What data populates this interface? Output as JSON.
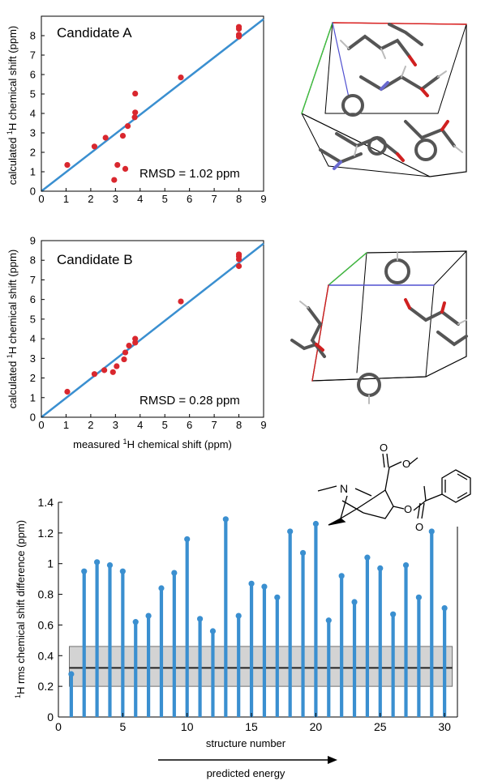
{
  "colors": {
    "fit_line": "#3a8fd0",
    "points": "#d9272e",
    "stems": "#3a8fd0",
    "band_fill": "#d3d3d3",
    "band_edge": "#707070",
    "mean_line": "#222222"
  },
  "chart_data": [
    {
      "type": "scatter",
      "title": "Candidate A",
      "annotation": "RMSD = 1.02 ppm",
      "xlabel": "",
      "ylabel_prefix": "calculated ",
      "ylabel_sup": "1",
      "ylabel_suffix": "H chemical shift (ppm)",
      "xlim": [
        0,
        9
      ],
      "ylim": [
        0,
        9
      ],
      "xticks": [
        0,
        1,
        2,
        3,
        4,
        5,
        6,
        7,
        8,
        9
      ],
      "yticks": [
        0,
        1,
        2,
        3,
        4,
        5,
        6,
        7,
        8
      ],
      "fit_line": [
        [
          0,
          0
        ],
        [
          9,
          8.85
        ]
      ],
      "points": [
        {
          "x": 1.05,
          "y": 1.35
        },
        {
          "x": 2.15,
          "y": 2.3
        },
        {
          "x": 2.6,
          "y": 2.75
        },
        {
          "x": 2.95,
          "y": 0.58
        },
        {
          "x": 3.08,
          "y": 1.35
        },
        {
          "x": 3.3,
          "y": 2.85
        },
        {
          "x": 3.4,
          "y": 1.15
        },
        {
          "x": 3.5,
          "y": 3.35
        },
        {
          "x": 3.78,
          "y": 3.8
        },
        {
          "x": 3.8,
          "y": 4.05
        },
        {
          "x": 3.8,
          "y": 5.02
        },
        {
          "x": 5.65,
          "y": 5.85
        },
        {
          "x": 8.0,
          "y": 7.95
        },
        {
          "x": 8.0,
          "y": 8.05
        },
        {
          "x": 8.0,
          "y": 8.35
        },
        {
          "x": 8.0,
          "y": 8.45
        }
      ]
    },
    {
      "type": "scatter",
      "title": "Candidate B",
      "annotation": "RMSD = 0.28 ppm",
      "xlabel_prefix": "measured ",
      "xlabel_sup": "1",
      "xlabel_suffix": "H chemical shift (ppm)",
      "ylabel_prefix": "calculated ",
      "ylabel_sup": "1",
      "ylabel_suffix": "H chemical shift (ppm)",
      "xlim": [
        0,
        9
      ],
      "ylim": [
        0,
        9
      ],
      "xticks": [
        0,
        1,
        2,
        3,
        4,
        5,
        6,
        7,
        8,
        9
      ],
      "yticks": [
        0,
        1,
        2,
        3,
        4,
        5,
        6,
        7,
        8,
        9
      ],
      "fit_line": [
        [
          0,
          0
        ],
        [
          9,
          8.85
        ]
      ],
      "points": [
        {
          "x": 1.05,
          "y": 1.3
        },
        {
          "x": 2.15,
          "y": 2.2
        },
        {
          "x": 2.55,
          "y": 2.4
        },
        {
          "x": 2.9,
          "y": 2.3
        },
        {
          "x": 3.05,
          "y": 2.6
        },
        {
          "x": 3.35,
          "y": 2.95
        },
        {
          "x": 3.4,
          "y": 3.3
        },
        {
          "x": 3.55,
          "y": 3.65
        },
        {
          "x": 3.8,
          "y": 3.8
        },
        {
          "x": 3.8,
          "y": 4.0
        },
        {
          "x": 5.65,
          "y": 5.9
        },
        {
          "x": 8.0,
          "y": 7.7
        },
        {
          "x": 8.0,
          "y": 8.05
        },
        {
          "x": 8.0,
          "y": 8.2
        },
        {
          "x": 8.0,
          "y": 8.3
        }
      ]
    },
    {
      "type": "bar",
      "style": "stem",
      "xlabel": "structure number",
      "xlabel_secondary": "predicted energy",
      "ylabel_sup": "1",
      "ylabel_suffix": "H rms chemical shift difference (ppm)",
      "xlim": [
        0,
        31
      ],
      "ylim": [
        0,
        1.4
      ],
      "xticks": [
        0,
        5,
        10,
        15,
        20,
        25,
        30
      ],
      "yticks": [
        "0",
        "0.2",
        "0.4",
        "0.6",
        "0.8",
        "1",
        "1.2",
        "1.4"
      ],
      "x": [
        1,
        2,
        3,
        4,
        5,
        6,
        7,
        8,
        9,
        10,
        11,
        12,
        13,
        14,
        15,
        16,
        17,
        18,
        19,
        20,
        21,
        22,
        23,
        24,
        25,
        26,
        27,
        28,
        29,
        30
      ],
      "values": [
        0.28,
        0.95,
        1.01,
        0.99,
        0.95,
        0.62,
        0.66,
        0.84,
        0.94,
        1.16,
        0.64,
        0.56,
        1.29,
        0.66,
        0.87,
        0.85,
        0.78,
        1.21,
        1.07,
        1.26,
        0.63,
        0.92,
        0.75,
        1.04,
        0.97,
        0.67,
        0.99,
        0.78,
        1.21,
        0.71
      ],
      "mean_line": 0.32,
      "band": [
        0.2,
        0.46
      ]
    }
  ],
  "molecule": {
    "atom_n": "N",
    "atom_o": "O"
  }
}
